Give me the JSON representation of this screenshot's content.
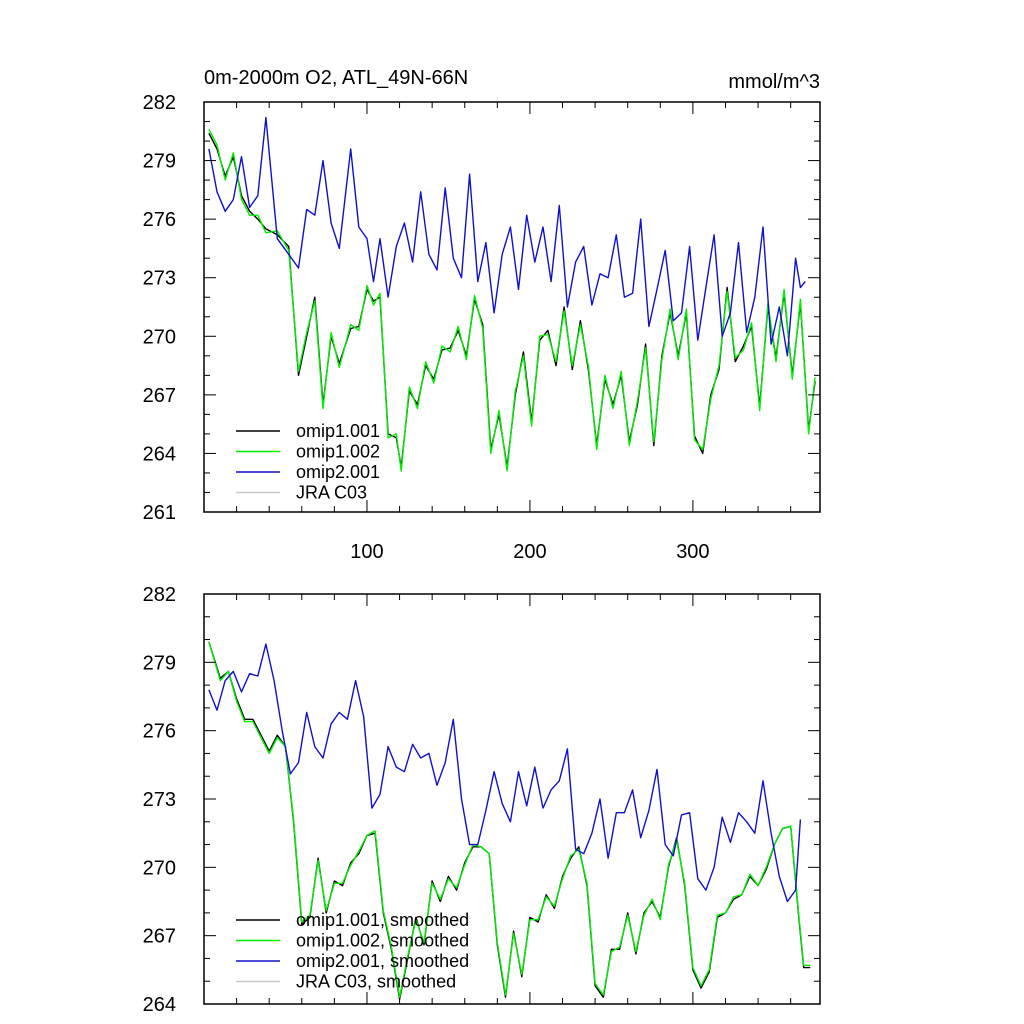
{
  "chart_data": [
    {
      "type": "line",
      "title": "0m-2000m O2, ATL_49N-66N",
      "units": "mmol/m^3",
      "xlim": [
        0,
        378
      ],
      "ylim": [
        261,
        282
      ],
      "x_ticks": [
        100,
        200,
        300
      ],
      "x_tick_labels": [
        "100",
        "200",
        "300"
      ],
      "y_ticks": [
        261,
        264,
        267,
        270,
        273,
        276,
        279,
        282
      ],
      "y_tick_labels": [
        "261",
        "264",
        "267",
        "270",
        "273",
        "276",
        "279",
        "282"
      ],
      "legend_position": "bottom-left",
      "series": [
        {
          "name": "omip1.001",
          "color": "#000000",
          "x": [
            3,
            8,
            13,
            18,
            23,
            28,
            33,
            38,
            45,
            52,
            58,
            63,
            68,
            73,
            78,
            83,
            90,
            95,
            100,
            104,
            108,
            113,
            118,
            121,
            126,
            131,
            136,
            141,
            146,
            151,
            156,
            161,
            166,
            171,
            176,
            181,
            186,
            191,
            196,
            201,
            206,
            211,
            216,
            221,
            226,
            231,
            236,
            241,
            246,
            251,
            256,
            261,
            266,
            271,
            276,
            281,
            286,
            291,
            296,
            301,
            306,
            311,
            316,
            321,
            326,
            331,
            336,
            341,
            346,
            351,
            356,
            361,
            366,
            371,
            375
          ],
          "y": [
            280.4,
            279.6,
            278.2,
            279.2,
            277.2,
            276.4,
            276.0,
            275.5,
            275.2,
            274.6,
            268.0,
            270.0,
            272.0,
            266.5,
            270.0,
            268.6,
            270.4,
            270.5,
            272.4,
            271.8,
            272.0,
            265.0,
            264.8,
            263.3,
            267.2,
            266.5,
            268.5,
            267.8,
            269.3,
            269.4,
            270.3,
            269.0,
            271.9,
            270.6,
            264.2,
            266.0,
            263.3,
            267.0,
            269.2,
            265.6,
            269.8,
            270.3,
            268.5,
            271.5,
            268.3,
            270.8,
            268.2,
            264.4,
            267.8,
            266.5,
            268.0,
            264.6,
            266.5,
            269.6,
            264.4,
            269.0,
            271.2,
            269.0,
            271.2,
            264.9,
            264.0,
            267.0,
            268.3,
            272.5,
            268.7,
            269.5,
            270.5,
            266.4,
            271.5,
            268.9,
            272.2,
            268.0,
            271.7,
            265.2,
            267.7
          ]
        },
        {
          "name": "omip1.002",
          "color": "#00ee00",
          "x": [
            3,
            8,
            13,
            18,
            23,
            28,
            33,
            38,
            45,
            52,
            58,
            63,
            68,
            73,
            78,
            83,
            90,
            95,
            100,
            104,
            108,
            113,
            118,
            121,
            126,
            131,
            136,
            141,
            146,
            151,
            156,
            161,
            166,
            171,
            176,
            181,
            186,
            191,
            196,
            201,
            206,
            211,
            216,
            221,
            226,
            231,
            236,
            241,
            246,
            251,
            256,
            261,
            266,
            271,
            276,
            281,
            286,
            291,
            296,
            301,
            306,
            311,
            316,
            321,
            326,
            331,
            336,
            341,
            346,
            351,
            356,
            361,
            366,
            371,
            375
          ],
          "y": [
            280.6,
            279.8,
            278.0,
            279.4,
            277.0,
            276.2,
            276.2,
            275.3,
            275.4,
            274.4,
            268.2,
            270.2,
            271.8,
            266.3,
            270.2,
            268.4,
            270.6,
            270.3,
            272.6,
            271.6,
            272.2,
            264.8,
            265.0,
            263.1,
            267.4,
            266.3,
            268.7,
            267.6,
            269.5,
            269.2,
            270.5,
            268.8,
            272.1,
            270.4,
            264.0,
            266.2,
            263.1,
            267.2,
            269.0,
            265.4,
            270.0,
            270.1,
            268.7,
            271.3,
            268.5,
            270.6,
            268.4,
            264.2,
            268.0,
            266.3,
            268.2,
            264.4,
            266.7,
            269.4,
            264.6,
            268.8,
            271.4,
            268.8,
            271.4,
            264.7,
            264.2,
            266.8,
            268.5,
            272.3,
            268.9,
            269.3,
            270.7,
            266.2,
            271.7,
            268.7,
            272.4,
            267.8,
            271.9,
            265.0,
            267.9
          ]
        },
        {
          "name": "omip2.001",
          "color": "#1010cc",
          "x": [
            3,
            8,
            13,
            18,
            23,
            28,
            33,
            38,
            45,
            52,
            58,
            63,
            68,
            73,
            78,
            83,
            90,
            95,
            100,
            104,
            108,
            113,
            118,
            123,
            128,
            133,
            138,
            143,
            148,
            153,
            158,
            163,
            168,
            173,
            178,
            183,
            188,
            193,
            198,
            203,
            208,
            213,
            218,
            223,
            228,
            233,
            238,
            243,
            248,
            253,
            258,
            263,
            268,
            273,
            278,
            283,
            288,
            293,
            298,
            303,
            308,
            313,
            318,
            323,
            328,
            333,
            338,
            343,
            348,
            353,
            358,
            363,
            366,
            369
          ],
          "y": [
            279.6,
            277.4,
            276.4,
            277.0,
            279.2,
            276.6,
            277.2,
            281.2,
            275.0,
            274.2,
            273.5,
            276.5,
            276.2,
            279.0,
            275.8,
            274.5,
            279.6,
            275.6,
            275.0,
            272.8,
            275.0,
            272.0,
            274.6,
            275.8,
            273.8,
            277.4,
            274.2,
            273.4,
            277.6,
            274.0,
            273.0,
            278.3,
            272.8,
            274.8,
            271.2,
            274.2,
            275.6,
            272.4,
            276.2,
            273.8,
            275.6,
            272.8,
            276.7,
            271.5,
            273.8,
            274.6,
            271.6,
            273.2,
            273.0,
            275.2,
            272.0,
            272.2,
            276.0,
            270.5,
            272.4,
            274.4,
            270.8,
            271.2,
            274.6,
            269.8,
            272.5,
            275.2,
            270.0,
            271.2,
            274.8,
            270.2,
            272.0,
            275.6,
            269.6,
            271.5,
            269.0,
            274.0,
            272.5,
            272.8
          ]
        },
        {
          "name": "JRA C03",
          "color": "#c8c8c8",
          "x": [],
          "y": []
        }
      ]
    },
    {
      "type": "line",
      "xlim": [
        0,
        378
      ],
      "ylim": [
        264,
        282
      ],
      "x_ticks": [
        100,
        200,
        300
      ],
      "y_ticks": [
        264,
        267,
        270,
        273,
        276,
        279,
        282
      ],
      "y_tick_labels": [
        "264",
        "267",
        "270",
        "273",
        "276",
        "279",
        "282"
      ],
      "legend_position": "bottom-left",
      "series": [
        {
          "name": "omip1.001, smoothed",
          "color": "#000000",
          "x": [
            3,
            10,
            15,
            20,
            25,
            30,
            40,
            45,
            50,
            55,
            60,
            65,
            70,
            75,
            80,
            85,
            90,
            95,
            100,
            105,
            110,
            115,
            120,
            125,
            130,
            135,
            140,
            145,
            150,
            155,
            160,
            165,
            170,
            175,
            180,
            185,
            190,
            195,
            200,
            205,
            210,
            215,
            220,
            225,
            230,
            235,
            240,
            245,
            250,
            255,
            260,
            265,
            270,
            275,
            280,
            285,
            290,
            295,
            300,
            305,
            310,
            315,
            320,
            325,
            330,
            335,
            340,
            345,
            350,
            355,
            360,
            365,
            368,
            372
          ],
          "y": [
            279.9,
            278.3,
            278.6,
            277.4,
            276.5,
            276.5,
            275.1,
            275.8,
            275.3,
            272.0,
            267.5,
            267.8,
            270.4,
            268.0,
            269.4,
            269.2,
            270.2,
            270.6,
            271.4,
            271.5,
            268.0,
            266.4,
            264.2,
            266.0,
            267.8,
            266.6,
            269.4,
            268.5,
            269.6,
            269.0,
            270.2,
            270.9,
            270.9,
            270.6,
            266.6,
            264.3,
            267.2,
            265.2,
            267.8,
            267.6,
            268.8,
            268.2,
            269.6,
            270.4,
            270.9,
            269.2,
            264.8,
            264.3,
            266.4,
            266.4,
            268.0,
            266.2,
            268.0,
            268.5,
            267.8,
            270.0,
            271.3,
            269.2,
            265.5,
            264.7,
            265.4,
            267.8,
            268.0,
            268.6,
            268.8,
            269.6,
            269.2,
            269.9,
            271.0,
            271.7,
            271.8,
            267.8,
            265.6,
            265.6
          ]
        },
        {
          "name": "omip1.002, smoothed",
          "color": "#00ee00",
          "x": [
            3,
            10,
            15,
            20,
            25,
            30,
            40,
            45,
            50,
            55,
            60,
            65,
            70,
            75,
            80,
            85,
            90,
            95,
            100,
            105,
            110,
            115,
            120,
            125,
            130,
            135,
            140,
            145,
            150,
            155,
            160,
            165,
            170,
            175,
            180,
            185,
            190,
            195,
            200,
            205,
            210,
            215,
            220,
            225,
            230,
            235,
            240,
            245,
            250,
            255,
            260,
            265,
            270,
            275,
            280,
            285,
            290,
            295,
            300,
            305,
            310,
            315,
            320,
            325,
            330,
            335,
            340,
            345,
            350,
            355,
            360,
            365,
            368,
            372
          ],
          "y": [
            279.9,
            278.2,
            278.6,
            277.3,
            276.4,
            276.4,
            275.0,
            275.7,
            275.3,
            272.1,
            267.6,
            267.9,
            270.3,
            268.1,
            269.3,
            269.3,
            270.1,
            270.7,
            271.4,
            271.6,
            268.1,
            266.5,
            264.3,
            266.1,
            267.7,
            266.7,
            269.3,
            268.6,
            269.5,
            269.1,
            270.1,
            271.0,
            270.9,
            270.6,
            266.7,
            264.4,
            267.1,
            265.3,
            267.7,
            267.7,
            268.7,
            268.3,
            269.5,
            270.5,
            270.8,
            269.3,
            264.9,
            264.4,
            266.3,
            266.5,
            267.9,
            266.3,
            267.9,
            268.6,
            267.7,
            270.1,
            271.2,
            269.3,
            265.6,
            264.8,
            265.5,
            267.9,
            268.0,
            268.7,
            268.8,
            269.7,
            269.2,
            270.0,
            271.0,
            271.7,
            271.8,
            267.9,
            265.7,
            265.7
          ]
        },
        {
          "name": "omip2.001, smoothed",
          "color": "#1010cc",
          "x": [
            3,
            8,
            13,
            18,
            23,
            28,
            33,
            38,
            43,
            48,
            53,
            58,
            63,
            68,
            73,
            78,
            83,
            88,
            93,
            98,
            103,
            108,
            113,
            118,
            123,
            128,
            133,
            138,
            143,
            148,
            153,
            158,
            163,
            168,
            173,
            178,
            183,
            188,
            193,
            198,
            203,
            208,
            213,
            218,
            223,
            228,
            233,
            238,
            243,
            248,
            253,
            258,
            263,
            268,
            273,
            278,
            283,
            288,
            293,
            298,
            303,
            308,
            313,
            318,
            323,
            328,
            333,
            338,
            343,
            348,
            353,
            358,
            363,
            366
          ],
          "y": [
            277.8,
            276.9,
            278.2,
            278.6,
            277.7,
            278.5,
            278.4,
            279.8,
            278.2,
            276.0,
            274.1,
            274.6,
            276.8,
            275.3,
            274.8,
            276.3,
            276.8,
            276.5,
            278.2,
            276.6,
            272.6,
            273.2,
            275.3,
            274.4,
            274.2,
            275.4,
            274.8,
            275.0,
            273.6,
            274.6,
            276.5,
            273.0,
            271.0,
            271.0,
            272.5,
            274.2,
            272.8,
            272.0,
            274.2,
            272.7,
            274.4,
            272.6,
            273.4,
            273.8,
            275.2,
            270.8,
            270.6,
            271.5,
            273.0,
            270.4,
            272.4,
            272.4,
            273.4,
            271.3,
            272.5,
            274.3,
            271.0,
            270.5,
            272.3,
            272.4,
            269.5,
            269.0,
            270.0,
            272.2,
            271.1,
            272.4,
            272.0,
            271.5,
            273.8,
            271.5,
            269.6,
            268.5,
            269.0,
            272.1
          ]
        },
        {
          "name": "JRA C03, smoothed",
          "color": "#c8c8c8",
          "x": [],
          "y": []
        }
      ]
    }
  ]
}
